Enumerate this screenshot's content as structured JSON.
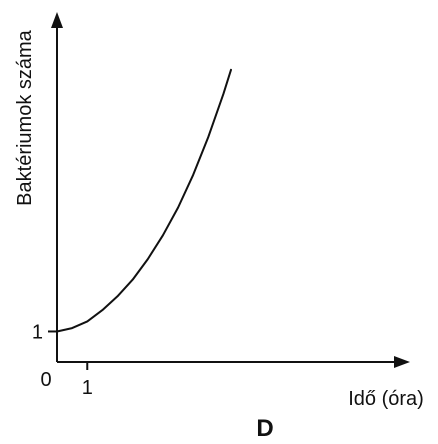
{
  "chart_data": {
    "type": "line",
    "title": "",
    "caption": "D",
    "xlabel": "Idő (óra)",
    "ylabel": "Baktériumok száma",
    "origin_label": "0",
    "x_ticks": [
      {
        "value": 1,
        "label": "1"
      }
    ],
    "y_ticks": [
      {
        "value": 1,
        "label": "1"
      }
    ],
    "xlim": [
      0,
      11.4
    ],
    "ylim": [
      0,
      11.2
    ],
    "grid": false,
    "legend": "none",
    "colors": {
      "line": "#111111",
      "axis": "#111111"
    },
    "series": [
      {
        "name": "",
        "points": [
          {
            "x": 0.0,
            "y": 1.0
          },
          {
            "x": 0.5,
            "y": 1.11
          },
          {
            "x": 1.0,
            "y": 1.33
          },
          {
            "x": 1.5,
            "y": 1.7
          },
          {
            "x": 2.0,
            "y": 2.15
          },
          {
            "x": 2.5,
            "y": 2.7
          },
          {
            "x": 3.0,
            "y": 3.37
          },
          {
            "x": 3.5,
            "y": 4.15
          },
          {
            "x": 4.0,
            "y": 5.06
          },
          {
            "x": 4.5,
            "y": 6.13
          },
          {
            "x": 5.0,
            "y": 7.37
          },
          {
            "x": 5.5,
            "y": 8.78
          },
          {
            "x": 5.75,
            "y": 9.57
          }
        ]
      }
    ]
  }
}
